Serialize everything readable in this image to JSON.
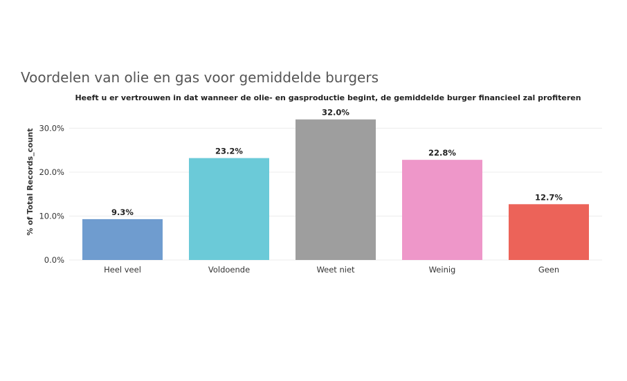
{
  "page": {
    "title": "Voordelen van olie en gas voor gemiddelde burgers"
  },
  "chart_data": {
    "type": "bar",
    "title": "Heeft u er vertrouwen in dat wanneer de olie- en gasproductie begint, de gemiddelde burger financieel zal profiteren",
    "xlabel": "",
    "ylabel": "% of Total Records_count",
    "ylim": [
      0,
      34
    ],
    "yticks": [
      0,
      10,
      20,
      30
    ],
    "ytick_labels": [
      "0.0%",
      "10.0%",
      "20.0%",
      "30.0%"
    ],
    "grid": true,
    "categories": [
      "Heel veel",
      "Voldoende",
      "Weet niet",
      "Weinig",
      "Geen"
    ],
    "values": [
      9.3,
      23.2,
      32.0,
      22.8,
      12.7
    ],
    "value_labels": [
      "9.3%",
      "23.2%",
      "32.0%",
      "22.8%",
      "12.7%"
    ],
    "colors": [
      "#6f9ccf",
      "#6bcad8",
      "#9e9e9e",
      "#ee97c9",
      "#ec6359"
    ]
  }
}
